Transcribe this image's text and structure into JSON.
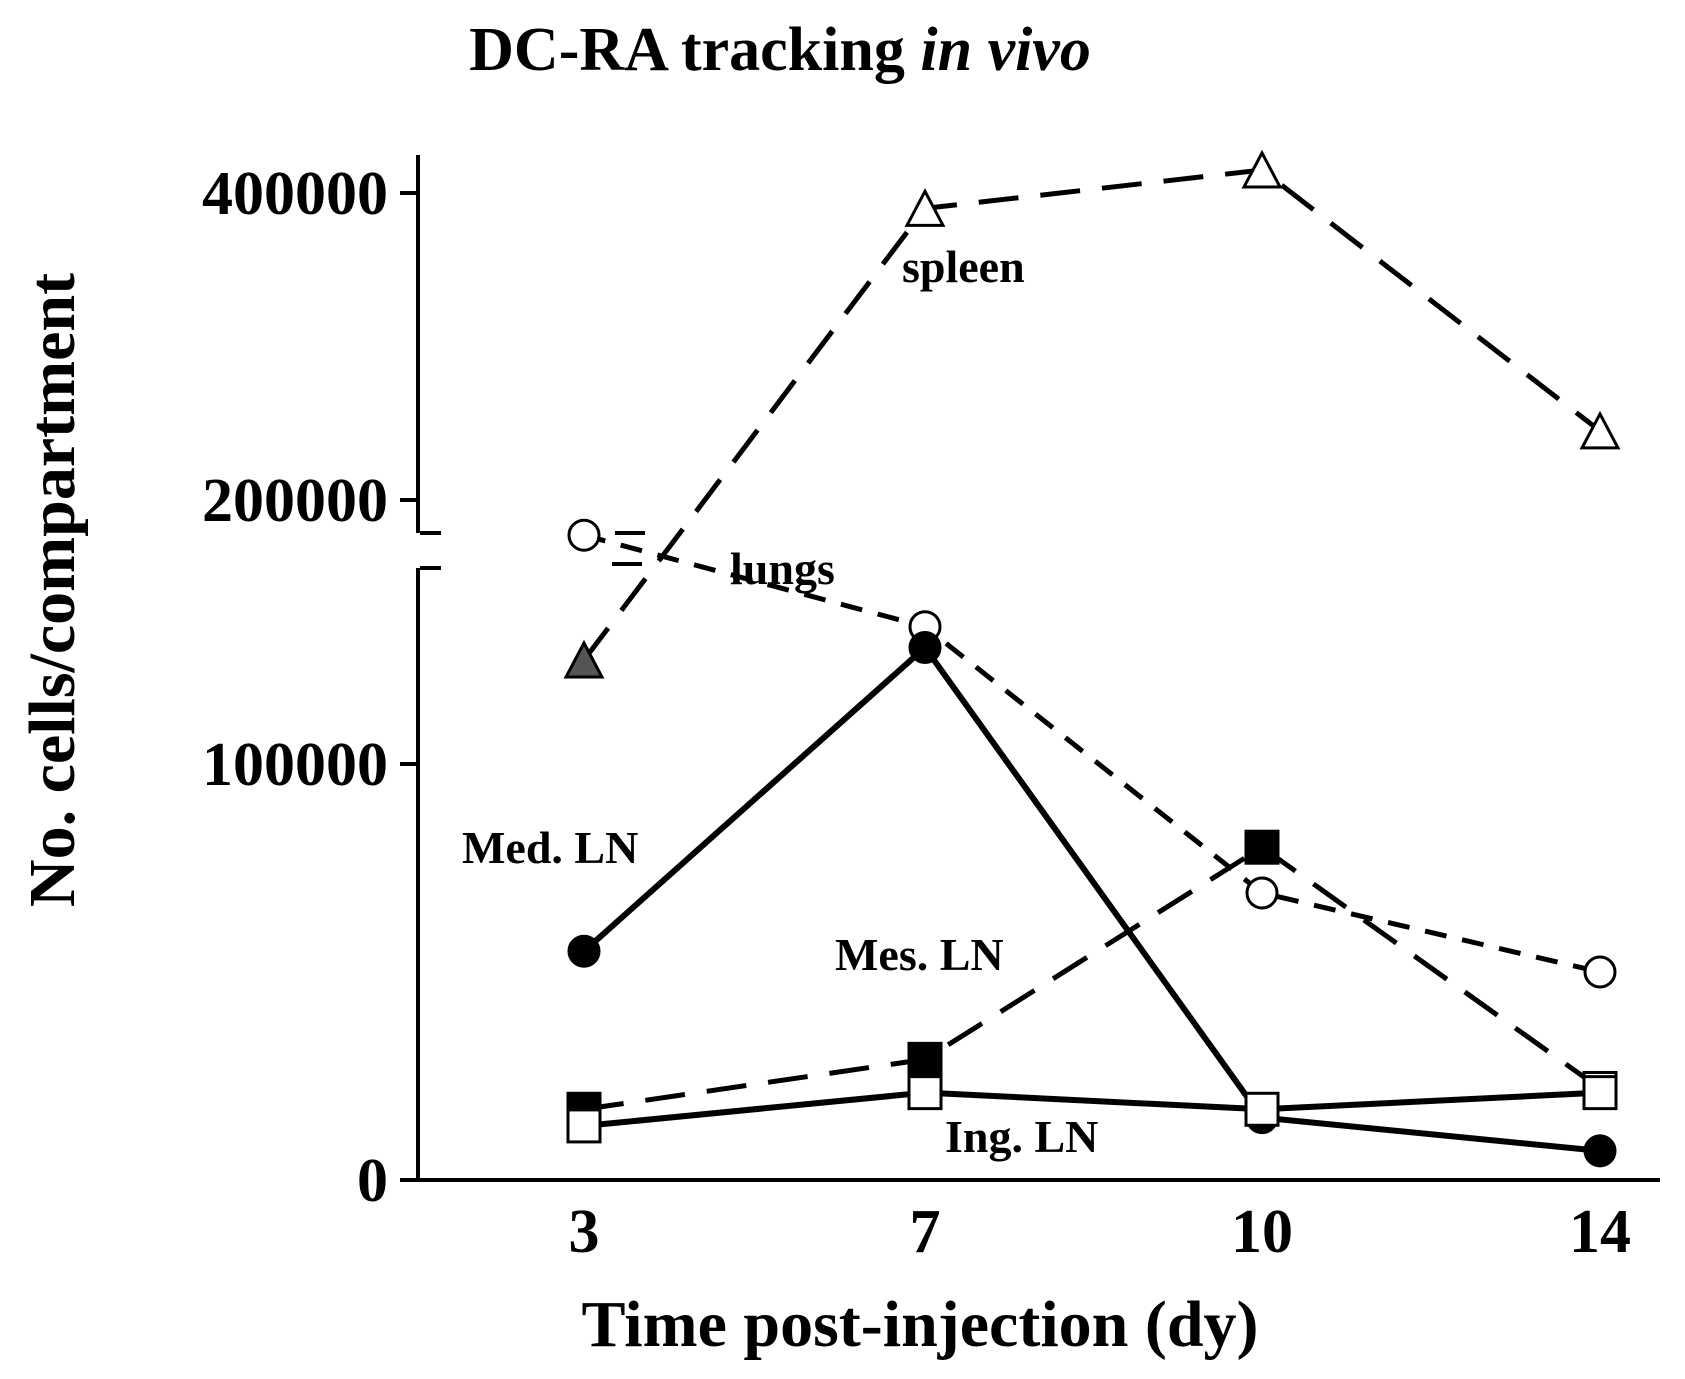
{
  "chart_data": {
    "type": "line",
    "title": "DC-RA tracking",
    "title_italic": "in vivo",
    "xlabel": "Time post-injection (dy)",
    "ylabel": "No. cells/compartment",
    "categories": [
      "3",
      "7",
      "10",
      "14"
    ],
    "x": [
      3,
      7,
      10,
      14
    ],
    "y_ticks": [
      {
        "value": 0,
        "label": "0"
      },
      {
        "value": 100000,
        "label": "100000"
      },
      {
        "value": 200000,
        "label": "200000"
      },
      {
        "value": 400000,
        "label": "400000"
      }
    ],
    "y_axis_break": {
      "lower_max": 165000,
      "upper_min": 180000
    },
    "ylim": [
      0,
      420000
    ],
    "series": [
      {
        "name": "spleen",
        "label": "spleen",
        "line": "long-dash",
        "values": [
          125000,
          390000,
          415000,
          245000
        ],
        "markers": [
          "filled-triangle",
          "open-triangle",
          "open-triangle",
          "open-triangle"
        ]
      },
      {
        "name": "lungs",
        "label": "lungs",
        "line": "short-dash",
        "values": [
          155000,
          133000,
          69000,
          50000
        ],
        "markers": [
          "open-circle",
          "open-circle",
          "open-circle",
          "open-circle"
        ]
      },
      {
        "name": "Med. LN",
        "label": "Med. LN",
        "line": "solid",
        "values": [
          55000,
          128000,
          15000,
          7000
        ],
        "markers": [
          "filled-circle",
          "filled-circle",
          "filled-circle",
          "filled-circle"
        ]
      },
      {
        "name": "Mes. LN",
        "label": "Mes. LN",
        "line": "long-dash",
        "values": [
          17000,
          29000,
          80000,
          22000
        ],
        "markers": [
          "filled-square",
          "filled-square",
          "filled-square",
          "open-square"
        ]
      },
      {
        "name": "Ing. LN",
        "label": "Ing. LN",
        "line": "solid",
        "values": [
          13000,
          21000,
          17000,
          21000
        ],
        "markers": [
          "open-square",
          "open-square",
          "open-square",
          "open-square"
        ]
      }
    ]
  }
}
